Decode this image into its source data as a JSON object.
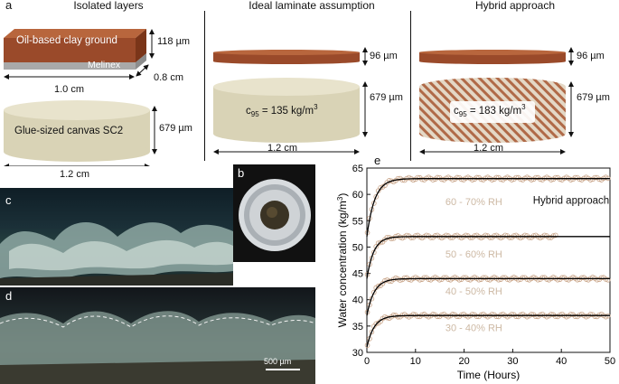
{
  "panel_letters": {
    "a": "a",
    "b": "b",
    "c": "c",
    "d": "d",
    "e": "e"
  },
  "headers": {
    "isolated": "Isolated layers",
    "ideal": "Ideal laminate assumption",
    "hybrid": "Hybrid approach"
  },
  "isolated": {
    "clay_label": "Oil-based clay ground",
    "clay_thickness": "118 µm",
    "melinex_label": "Melinex",
    "width_label": "1.0 cm",
    "depth_label": "0.8 cm",
    "canvas_label": "Glue-sized canvas SC2",
    "canvas_thickness": "679 µm",
    "canvas_width": "1.2 cm"
  },
  "ideal": {
    "top_thickness": "96 µm",
    "c95_label": "c",
    "c95_sub": "95",
    "c95_value": " = 135 kg/m",
    "c95_sup": "3",
    "bottom_thickness": "679 µm",
    "width_label": "1.2 cm"
  },
  "hybrid": {
    "top_thickness": "96 µm",
    "c95_label": "c",
    "c95_sub": "95",
    "c95_value": " = 183 kg/m",
    "c95_sup": "3",
    "bottom_thickness": "679 µm",
    "width_label": "1.2 cm"
  },
  "micro_d": {
    "scale_bar": "500 µm"
  },
  "colors": {
    "clay": "#9a4a2a",
    "canvas": "#d9d3b6",
    "melinex": "#a9a9a9",
    "data_points": "#c8a488",
    "fit_line": "#000000"
  },
  "chart_data": {
    "type": "line",
    "title": "",
    "annotation": "Hybrid approach",
    "xlabel": "Time (Hours)",
    "ylabel_main": "Water concentration (kg/m",
    "ylabel_sup": "3",
    "ylabel_end": ")",
    "xlim": [
      0,
      50
    ],
    "ylim": [
      30,
      65
    ],
    "xticks": [
      0,
      10,
      20,
      30,
      40,
      50
    ],
    "yticks": [
      30,
      35,
      40,
      45,
      50,
      55,
      60,
      65
    ],
    "grid": false,
    "series": [
      {
        "name": "60 - 70% RH",
        "y0": 52,
        "yinf": 63,
        "tau": 1.6,
        "xend": 50
      },
      {
        "name": "50 - 60% RH",
        "y0": 44,
        "yinf": 52,
        "tau": 1.4,
        "xend": 39
      },
      {
        "name": "40 - 50% RH",
        "y0": 37,
        "yinf": 44,
        "tau": 1.5,
        "xend": 50
      },
      {
        "name": "30 - 40% RH",
        "y0": 31,
        "yinf": 37,
        "tau": 1.5,
        "xend": 50
      }
    ]
  }
}
